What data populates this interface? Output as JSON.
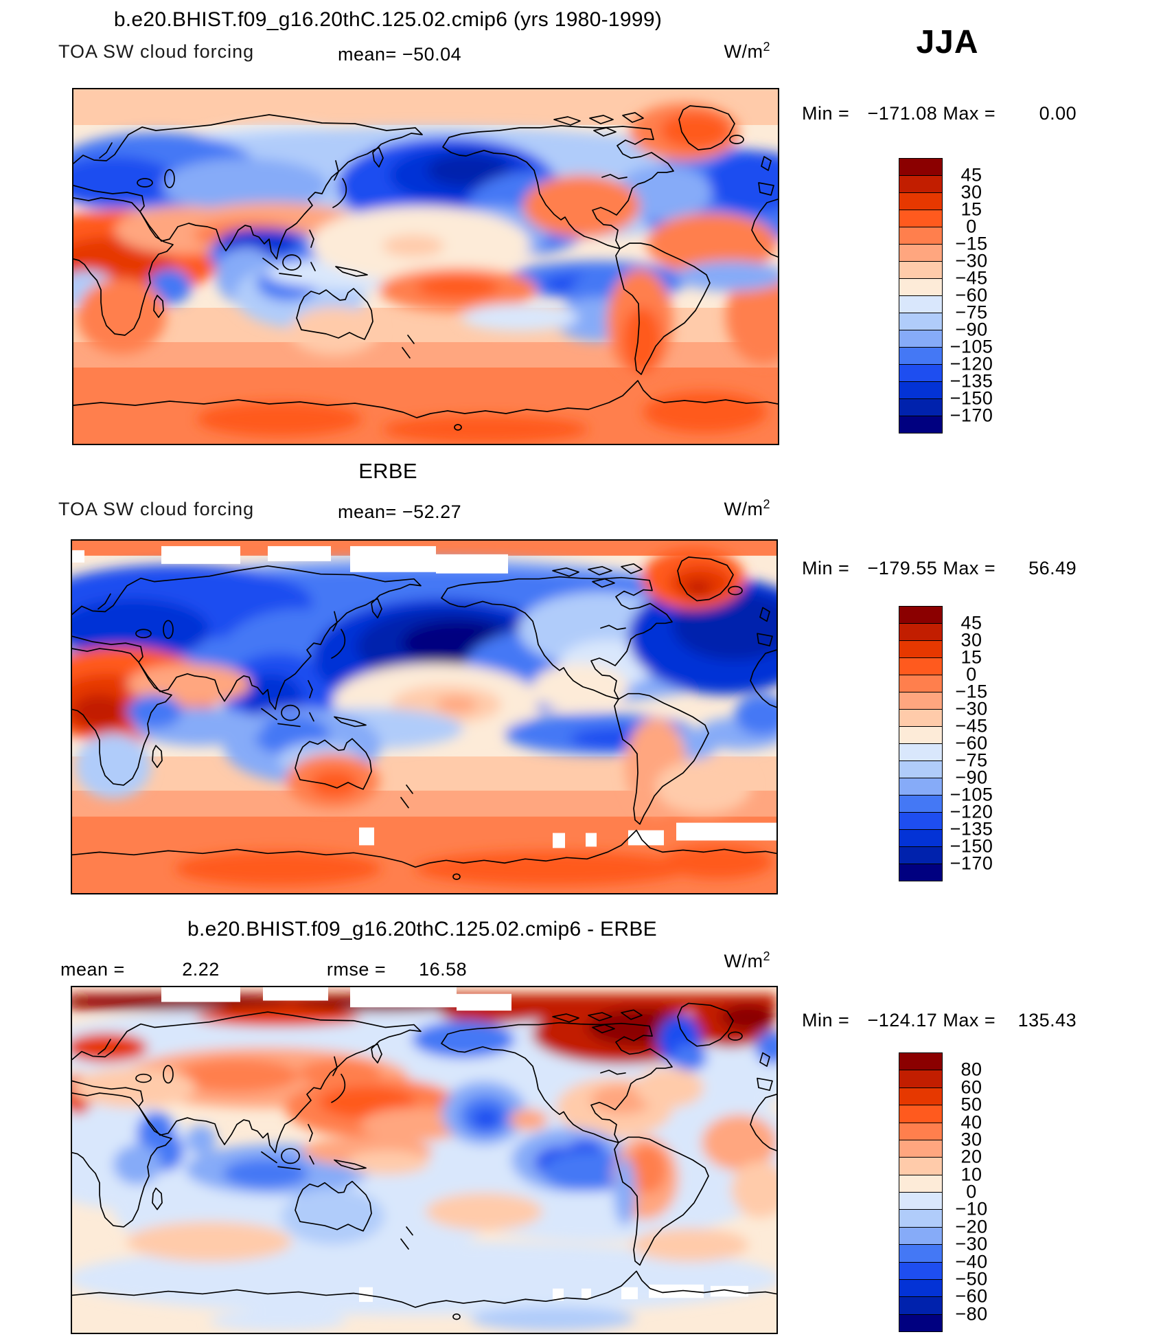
{
  "season_label": "JJA",
  "labels": {
    "min": "Min",
    "max": "Max",
    "eq": "="
  },
  "palette": [
    "#8B0000",
    "#C21E00",
    "#E63800",
    "#FF5A1E",
    "#FF7F4D",
    "#FFA67F",
    "#FFCBAA",
    "#FDEBD8",
    "#D9E7FC",
    "#B0CCFA",
    "#86ABF8",
    "#4478F5",
    "#1E4EF0",
    "#0333D6",
    "#0022AD",
    "#000080"
  ],
  "panels": [
    {
      "title": "b.e20.BHIST.f09_g16.20thC.125.02.cmip6 (yrs 1980-1999)",
      "variable": "TOA SW cloud forcing",
      "mean_label": "mean=",
      "mean": "−50.04",
      "units_base": "W/m",
      "units_exp": "2",
      "min": "−171.08",
      "max": "0.00",
      "colorbar_labels": [
        "45",
        "30",
        "15",
        "0",
        "−15",
        "−30",
        "−45",
        "−60",
        "−75",
        "−90",
        "−105",
        "−120",
        "−135",
        "−150",
        "−170"
      ]
    },
    {
      "title": "ERBE",
      "variable": "TOA SW cloud forcing",
      "mean_label": "mean=",
      "mean": "−52.27",
      "units_base": "W/m",
      "units_exp": "2",
      "min": "−179.55",
      "max": "56.49",
      "colorbar_labels": [
        "45",
        "30",
        "15",
        "0",
        "−15",
        "−30",
        "−45",
        "−60",
        "−75",
        "−90",
        "−105",
        "−120",
        "−135",
        "−150",
        "−170"
      ]
    },
    {
      "title": "b.e20.BHIST.f09_g16.20thC.125.02.cmip6 - ERBE",
      "mean_label": "mean =",
      "mean": "2.22",
      "rmse_label": "rmse =",
      "rmse": "16.58",
      "units_base": "W/m",
      "units_exp": "2",
      "min": "−124.17",
      "max": "135.43",
      "colorbar_labels": [
        "80",
        "60",
        "50",
        "40",
        "30",
        "20",
        "10",
        "0",
        "−10",
        "−20",
        "−30",
        "−40",
        "−50",
        "−60",
        "−80"
      ]
    }
  ],
  "chart_data": [
    {
      "type": "heatmap",
      "subtype": "global filled-contour map (cylindrical equidistant, lon 0–360, lat 90N–90S)",
      "title": "b.e20.BHIST.f09_g16.20thC.125.02.cmip6 (yrs 1980-1999)",
      "variable": "TOA SW cloud forcing",
      "season": "JJA",
      "units": "W/m2",
      "mean": -50.04,
      "min": -171.08,
      "max": 0.0,
      "contour_levels": [
        45,
        30,
        15,
        0,
        -15,
        -30,
        -45,
        -60,
        -75,
        -90,
        -105,
        -120,
        -135,
        -150,
        -170
      ],
      "legend_position": "right",
      "palette": "16-step red(positive/weak forcing) to navy(strong negative forcing) diverging"
    },
    {
      "type": "heatmap",
      "subtype": "global filled-contour map (cylindrical equidistant, lon 0–360, lat 90N–90S), white = missing data",
      "title": "ERBE",
      "variable": "TOA SW cloud forcing",
      "season": "JJA",
      "units": "W/m2",
      "mean": -52.27,
      "min": -179.55,
      "max": 56.49,
      "contour_levels": [
        45,
        30,
        15,
        0,
        -15,
        -30,
        -45,
        -60,
        -75,
        -90,
        -105,
        -120,
        -135,
        -150,
        -170
      ],
      "legend_position": "right",
      "palette": "16-step red to navy diverging"
    },
    {
      "type": "heatmap",
      "subtype": "global filled-contour difference map (model minus observations), white = missing data",
      "title": "b.e20.BHIST.f09_g16.20thC.125.02.cmip6 - ERBE",
      "variable": "TOA SW cloud forcing difference",
      "season": "JJA",
      "units": "W/m2",
      "mean": 2.22,
      "rmse": 16.58,
      "min": -124.17,
      "max": 135.43,
      "contour_levels": [
        80,
        60,
        50,
        40,
        30,
        20,
        10,
        0,
        -10,
        -20,
        -30,
        -40,
        -50,
        -60,
        -80
      ],
      "legend_position": "right",
      "palette": "16-step red(model too bright/positive bias) to navy(negative bias) diverging"
    }
  ]
}
